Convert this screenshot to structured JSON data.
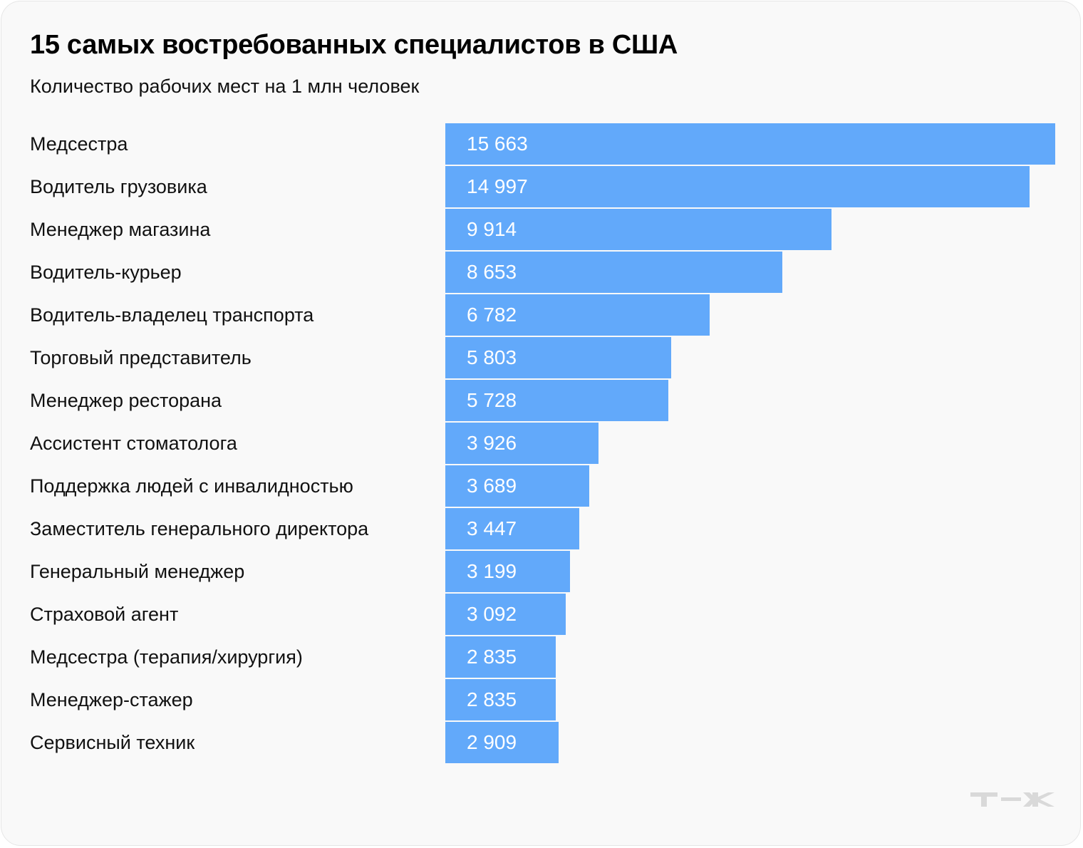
{
  "chart_data": {
    "type": "bar",
    "orientation": "horizontal",
    "title": "15 самых востребованных специалистов в США",
    "subtitle": "Количество рабочих мест на 1 млн человек",
    "xlabel": "",
    "ylabel": "",
    "xlim": [
      0,
      15663
    ],
    "grid": false,
    "categories": [
      "Медсестра",
      "Водитель грузовика",
      "Менеджер магазина",
      "Водитель-курьер",
      "Водитель-владелец транспорта",
      "Торговый представитель",
      "Менеджер ресторана",
      "Ассистент стоматолога",
      "Поддержка людей с инвалидностью",
      "Заместитель генерального директора",
      "Генеральный менеджер",
      "Страховой агент",
      "Медсестра (терапия/хирургия)",
      "Менеджер-стажер",
      "Сервисный техник"
    ],
    "values": [
      15663,
      14997,
      9914,
      8653,
      6782,
      5803,
      5728,
      3926,
      3689,
      3447,
      3199,
      3092,
      2835,
      2835,
      2909
    ],
    "value_labels": [
      "15 663",
      "14 997",
      "9 914",
      "8 653",
      "6 782",
      "5 803",
      "5 728",
      "3 926",
      "3 689",
      "3 447",
      "3 199",
      "3 092",
      "2 835",
      "2 835",
      "2 909"
    ],
    "bar_color": "#62a9fa"
  },
  "logo": {
    "text": "т—ж",
    "color": "#d9d9d9"
  }
}
